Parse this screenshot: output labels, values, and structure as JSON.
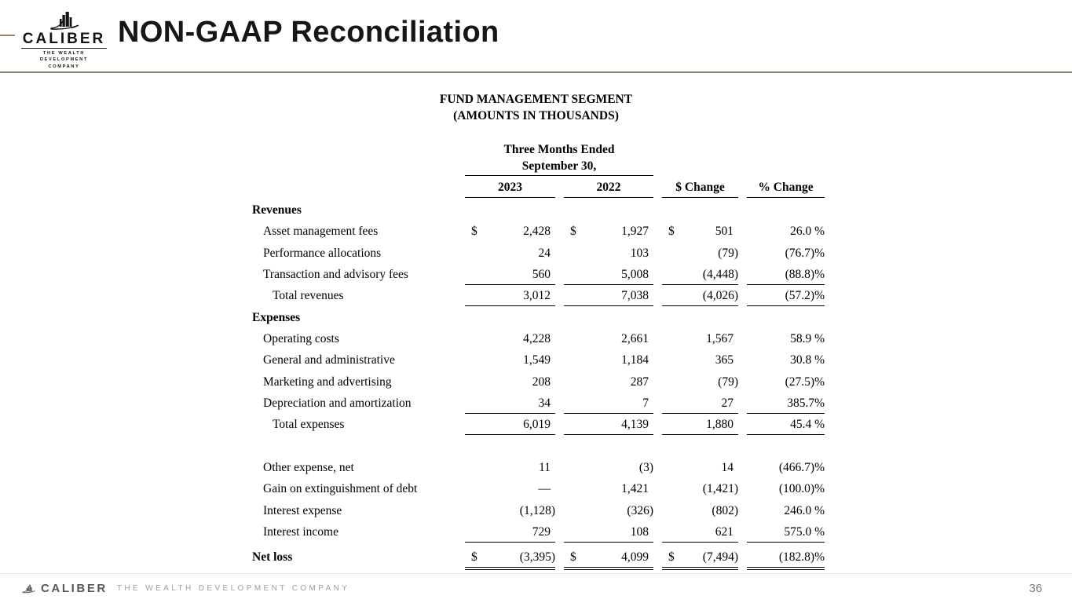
{
  "header": {
    "brand_name": "CALIBER",
    "brand_tagline_line1": "THE WEALTH DEVELOPMENT",
    "brand_tagline_line2": "COMPANY",
    "title": "NON-GAAP Reconciliation"
  },
  "table": {
    "title_line1": "FUND MANAGEMENT SEGMENT",
    "title_line2": "(AMOUNTS IN THOUSANDS)",
    "period_line1": "Three Months Ended",
    "period_line2": "September 30,",
    "columns": [
      "2023",
      "2022",
      "$ Change",
      "% Change"
    ],
    "rows": [
      {
        "label": "Revenues",
        "style": "section"
      },
      {
        "label": "Asset management fees",
        "style": "item",
        "dollar": true,
        "values": [
          "2,428",
          "1,927",
          "501",
          "26.0 %"
        ]
      },
      {
        "label": "Performance allocations",
        "style": "item",
        "values": [
          "24",
          "103",
          "(79)",
          "(76.7)%"
        ]
      },
      {
        "label": "Transaction and advisory fees",
        "style": "item",
        "values": [
          "560",
          "5,008",
          "(4,448)",
          "(88.8)%"
        ],
        "underline": "single"
      },
      {
        "label": "Total revenues",
        "style": "total",
        "values": [
          "3,012",
          "7,038",
          "(4,026)",
          "(57.2)%"
        ],
        "underline": "single"
      },
      {
        "label": "Expenses",
        "style": "section"
      },
      {
        "label": "Operating costs",
        "style": "item",
        "values": [
          "4,228",
          "2,661",
          "1,567",
          "58.9 %"
        ]
      },
      {
        "label": "General and administrative",
        "style": "item",
        "values": [
          "1,549",
          "1,184",
          "365",
          "30.8 %"
        ]
      },
      {
        "label": "Marketing and advertising",
        "style": "item",
        "values": [
          "208",
          "287",
          "(79)",
          "(27.5)%"
        ]
      },
      {
        "label": "Depreciation and amortization",
        "style": "item",
        "values": [
          "34",
          "7",
          "27",
          "385.7%"
        ],
        "underline": "single"
      },
      {
        "label": "Total expenses",
        "style": "total",
        "values": [
          "6,019",
          "4,139",
          "1,880",
          "45.4 %"
        ],
        "underline": "single"
      },
      {
        "style": "spacer"
      },
      {
        "label": "Other expense, net",
        "style": "item",
        "values": [
          "11",
          "(3)",
          "14",
          "(466.7)%"
        ]
      },
      {
        "label": "Gain on extinguishment of debt",
        "style": "item",
        "values": [
          "—",
          "1,421",
          "(1,421)",
          "(100.0)%"
        ]
      },
      {
        "label": "Interest expense",
        "style": "item",
        "values": [
          "(1,128)",
          "(326)",
          "(802)",
          "246.0 %"
        ]
      },
      {
        "label": "Interest income",
        "style": "item",
        "values": [
          "729",
          "108",
          "621",
          "575.0 %"
        ],
        "underline": "single"
      },
      {
        "label": "Net loss",
        "style": "net",
        "dollar": true,
        "values": [
          "(3,395)",
          "4,099",
          "(7,494)",
          "(182.8)%"
        ],
        "underline": "double"
      }
    ]
  },
  "footer": {
    "brand_name": "CALIBER",
    "tagline": "THE WEALTH DEVELOPMENT COMPANY",
    "page_number": "36"
  },
  "colors": {
    "header_rule": "#8a8270",
    "accent_tick": "#a8835f",
    "text": "#000000",
    "footer_brand": "#55585c",
    "footer_tagline": "#9a9da1",
    "footer_rule": "#e8e8e8"
  }
}
